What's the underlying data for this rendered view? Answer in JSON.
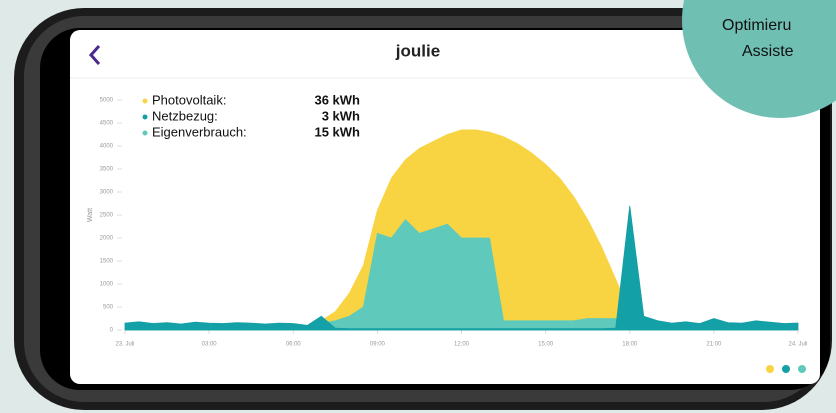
{
  "app": {
    "title": "joulie",
    "badge_lines": [
      "Optimieru",
      "Assiste"
    ]
  },
  "chart_data": {
    "type": "area",
    "ylabel": "Watt",
    "x": [
      0,
      0.5,
      1,
      1.5,
      2,
      2.5,
      3,
      3.5,
      4,
      4.5,
      5,
      5.5,
      6,
      6.5,
      7,
      7.5,
      8,
      8.5,
      9,
      9.5,
      10,
      10.5,
      11,
      11.5,
      12,
      12.5,
      13,
      13.5,
      14,
      14.5,
      15,
      15.5,
      16,
      16.5,
      17,
      17.5,
      18,
      18.5,
      19,
      19.5,
      20,
      20.5,
      21,
      21.5,
      22,
      22.5,
      23,
      23.5,
      24
    ],
    "xlim": [
      0,
      24
    ],
    "xticks": [
      {
        "value": 0,
        "label": "23. Juli"
      },
      {
        "value": 3,
        "label": "03:00"
      },
      {
        "value": 6,
        "label": "06:00"
      },
      {
        "value": 9,
        "label": "09:00"
      },
      {
        "value": 12,
        "label": "12:00"
      },
      {
        "value": 15,
        "label": "15:00"
      },
      {
        "value": 18,
        "label": "18:00"
      },
      {
        "value": 21,
        "label": "21:00"
      },
      {
        "value": 24,
        "label": "24. Juli"
      }
    ],
    "ylim": [
      0,
      5000
    ],
    "yticks": [
      0,
      500,
      1000,
      1500,
      2000,
      2500,
      3000,
      3500,
      4000,
      4500,
      5000
    ],
    "grid": true,
    "series": [
      {
        "name": "Photovoltaik:",
        "total_label": "36 kWh",
        "color": "#f8d443",
        "values": [
          0,
          0,
          0,
          0,
          0,
          0,
          0,
          0,
          0,
          0,
          0,
          0,
          0,
          100,
          200,
          400,
          800,
          1400,
          2600,
          3300,
          3700,
          3950,
          4100,
          4250,
          4350,
          4350,
          4300,
          4200,
          4050,
          3850,
          3600,
          3300,
          2900,
          2400,
          1800,
          1100,
          400,
          150,
          50,
          0,
          0,
          0,
          0,
          0,
          0,
          0,
          0,
          0,
          0
        ]
      },
      {
        "name": "Eigenverbrauch:",
        "total_label": "15 kWh",
        "color": "#5fcabb",
        "values": [
          0,
          0,
          0,
          0,
          0,
          0,
          0,
          0,
          0,
          0,
          0,
          0,
          0,
          100,
          150,
          200,
          300,
          500,
          2100,
          2000,
          2400,
          2100,
          2200,
          2300,
          2000,
          2000,
          2000,
          200,
          200,
          200,
          200,
          200,
          200,
          250,
          250,
          250,
          300,
          150,
          100,
          0,
          0,
          0,
          0,
          0,
          0,
          0,
          0,
          0,
          0
        ]
      },
      {
        "name": "Netzbezug:",
        "total_label": "3 kWh",
        "color": "#13a0a6",
        "values": [
          150,
          180,
          140,
          160,
          130,
          170,
          150,
          140,
          160,
          150,
          130,
          150,
          140,
          100,
          300,
          40,
          30,
          30,
          30,
          30,
          30,
          30,
          30,
          30,
          30,
          30,
          30,
          30,
          30,
          30,
          30,
          30,
          30,
          30,
          30,
          40,
          2700,
          300,
          200,
          150,
          180,
          140,
          250,
          160,
          150,
          200,
          170,
          140,
          150
        ]
      }
    ]
  }
}
